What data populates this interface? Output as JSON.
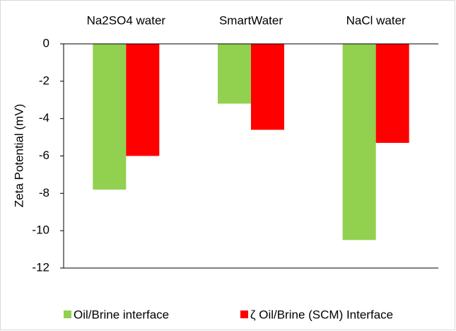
{
  "chart_data": {
    "type": "bar",
    "y_label": "Zeta Potential (mV)",
    "categories": [
      "Na2SO4 water",
      "SmartWater",
      "NaCl water"
    ],
    "series": [
      {
        "name": "Oil/Brine interface",
        "color": "#92d050",
        "values": [
          -7.8,
          -3.2,
          -10.5
        ]
      },
      {
        "name": "ζ Oil/Brine (SCM) Interface",
        "color": "#ff0000",
        "values": [
          -6.0,
          -4.6,
          -5.3
        ]
      }
    ],
    "ylim": [
      -12,
      0
    ],
    "yticks": [
      0,
      -2,
      -4,
      -6,
      -8,
      -10,
      -12
    ],
    "legend": "bottom"
  }
}
